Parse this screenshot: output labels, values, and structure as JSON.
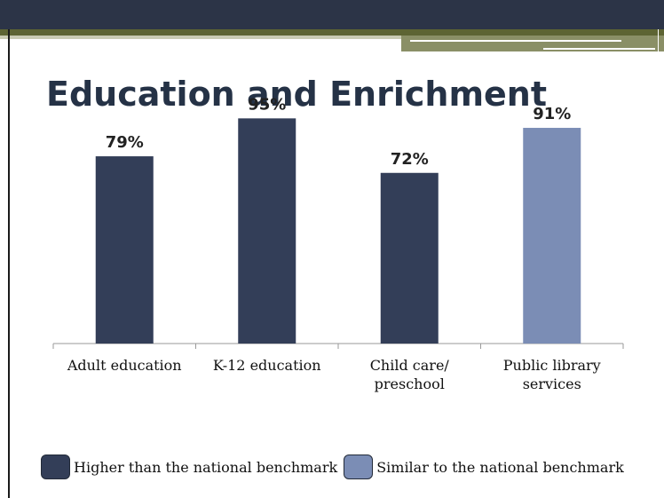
{
  "slide": {
    "title": "Education and Enrichment"
  },
  "colors": {
    "higher": "#333e58",
    "similar": "#7b8db5",
    "title": "#253246"
  },
  "chart_data": {
    "type": "bar",
    "categories": [
      [
        "Adult education"
      ],
      [
        "K-12 education"
      ],
      [
        "Child care/",
        "preschool"
      ],
      [
        "Public library",
        "services"
      ]
    ],
    "values": [
      79,
      95,
      72,
      91
    ],
    "value_labels": [
      "79%",
      "95%",
      "72%",
      "91%"
    ],
    "status": [
      "higher",
      "higher",
      "higher",
      "similar"
    ],
    "ylim": [
      0,
      100
    ],
    "grid": false,
    "legend_position": "bottom-left",
    "legend": [
      {
        "key": "higher",
        "label": "Higher than the national benchmark"
      },
      {
        "key": "similar",
        "label": "Similar to the national benchmark"
      }
    ]
  }
}
